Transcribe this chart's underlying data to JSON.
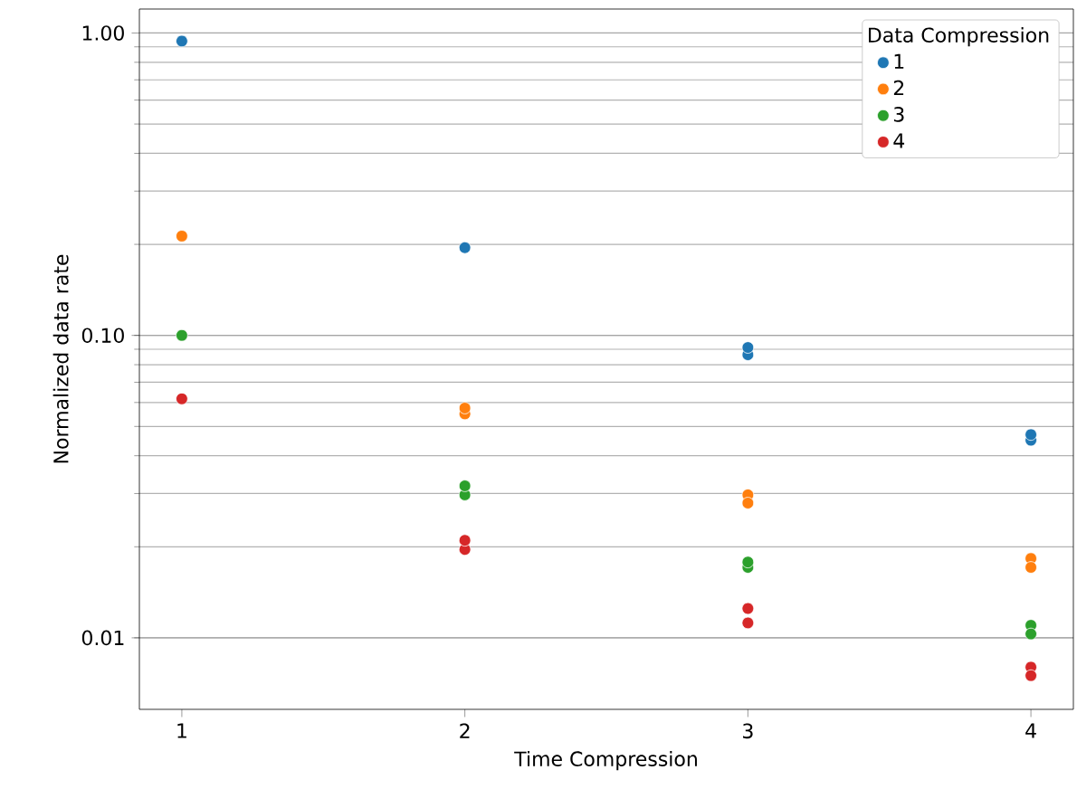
{
  "chart_data": {
    "type": "scatter",
    "xlabel": "Time Compression",
    "ylabel": "Normalized data rate",
    "legend_title": "Data Compression",
    "legend": "top right",
    "log": "y",
    "grid": "y",
    "xlim": [
      0.85,
      4.15
    ],
    "xticks": [
      1,
      2,
      3,
      4
    ],
    "ylim": [
      0.0058,
      1.2
    ],
    "yticks": [
      {
        "value": 0.01,
        "label": "0.01"
      },
      {
        "value": 0.1,
        "label": "0.10"
      },
      {
        "value": 1,
        "label": "1.00"
      }
    ],
    "series": [
      {
        "name": "1",
        "color": "#1f77b4",
        "x": [
          1,
          2,
          3,
          3,
          4,
          4
        ],
        "values": [
          0.94,
          0.195,
          0.0863,
          0.0912,
          0.045,
          0.047
        ]
      },
      {
        "name": "2",
        "color": "#ff7f0e",
        "x": [
          1,
          2,
          2,
          3,
          3,
          4,
          4
        ],
        "values": [
          0.213,
          0.055,
          0.0575,
          0.0297,
          0.0279,
          0.0183,
          0.0171
        ]
      },
      {
        "name": "3",
        "color": "#2ca02c",
        "x": [
          1,
          2,
          2,
          3,
          3,
          4,
          4
        ],
        "values": [
          0.1,
          0.0297,
          0.0318,
          0.0171,
          0.0178,
          0.011,
          0.0103
        ]
      },
      {
        "name": "4",
        "color": "#d62728",
        "x": [
          1,
          2,
          2,
          3,
          3,
          4,
          4
        ],
        "values": [
          0.0617,
          0.0196,
          0.021,
          0.0125,
          0.0112,
          0.008,
          0.0075
        ]
      }
    ]
  }
}
